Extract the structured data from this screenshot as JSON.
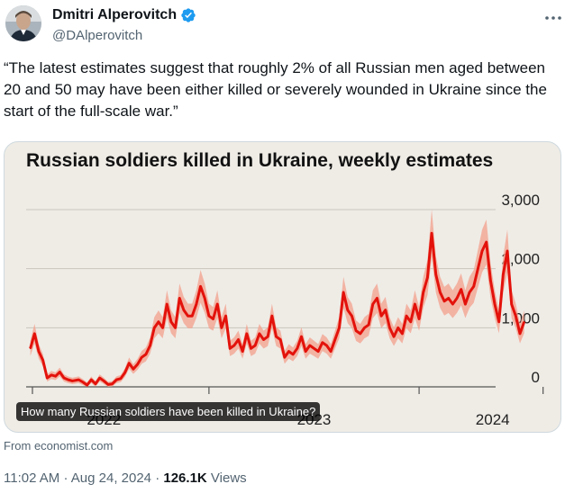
{
  "author": {
    "name": "Dmitri Alperovitch",
    "handle": "@DAlperovitch"
  },
  "tweet": {
    "text": "“The latest estimates suggest that roughly 2% of all Russian men aged between 20 and 50 may have been either killed or severely wounded in Ukraine since the start of the full-scale war.”",
    "alt_text": "How many Russian soldiers have been killed in Ukraine?",
    "source": "From economist.com",
    "time": "11:02 AM",
    "date": "Aug 24, 2024",
    "views_count": "126.1K",
    "views_label": "Views"
  },
  "icons": {
    "verified": "verified-badge-icon",
    "more": "more-options-icon"
  },
  "colors": {
    "line": "#e3120b",
    "band": "#f3a08c",
    "card_bg": "#efece6",
    "verified": "#1d9bf0"
  },
  "chart_data": {
    "type": "line",
    "title": "Russian soldiers killed in Ukraine, weekly estimates",
    "y_ticks": [
      "3,000",
      "2,000",
      "1,000",
      "0"
    ],
    "y_tick_values": [
      3000,
      2000,
      1000,
      0
    ],
    "x_tick_labels": [
      "2022",
      "2023",
      "2024"
    ],
    "ylim": [
      0,
      3000
    ],
    "xlim": [
      2022.13,
      2024.6
    ],
    "series": [
      {
        "name": "Weekly estimate",
        "x": [
          2022.15,
          2022.17,
          2022.19,
          2022.21,
          2022.23,
          2022.25,
          2022.27,
          2022.29,
          2022.31,
          2022.33,
          2022.35,
          2022.38,
          2022.4,
          2022.42,
          2022.44,
          2022.46,
          2022.48,
          2022.5,
          2022.52,
          2022.54,
          2022.56,
          2022.58,
          2022.6,
          2022.62,
          2022.64,
          2022.66,
          2022.68,
          2022.7,
          2022.72,
          2022.74,
          2022.76,
          2022.78,
          2022.8,
          2022.82,
          2022.84,
          2022.86,
          2022.88,
          2022.9,
          2022.92,
          2022.94,
          2022.96,
          2022.98,
          2023.0,
          2023.02,
          2023.04,
          2023.06,
          2023.08,
          2023.1,
          2023.12,
          2023.14,
          2023.16,
          2023.18,
          2023.2,
          2023.22,
          2023.24,
          2023.26,
          2023.28,
          2023.3,
          2023.32,
          2023.34,
          2023.36,
          2023.38,
          2023.4,
          2023.42,
          2023.44,
          2023.46,
          2023.48,
          2023.5,
          2023.52,
          2023.54,
          2023.56,
          2023.58,
          2023.6,
          2023.62,
          2023.64,
          2023.66,
          2023.68,
          2023.7,
          2023.72,
          2023.74,
          2023.76,
          2023.78,
          2023.8,
          2023.82,
          2023.84,
          2023.86,
          2023.88,
          2023.9,
          2023.92,
          2023.94,
          2023.96,
          2023.98,
          2024.0,
          2024.02,
          2024.04,
          2024.06,
          2024.08,
          2024.1,
          2024.12,
          2024.14,
          2024.16,
          2024.18,
          2024.2,
          2024.22,
          2024.24,
          2024.26,
          2024.28,
          2024.3,
          2024.32,
          2024.34,
          2024.36,
          2024.38,
          2024.4,
          2024.42,
          2024.44,
          2024.46,
          2024.48,
          2024.5
        ],
        "values": [
          650,
          900,
          600,
          450,
          150,
          200,
          180,
          250,
          150,
          120,
          100,
          120,
          80,
          30,
          120,
          50,
          150,
          100,
          40,
          50,
          120,
          140,
          240,
          400,
          300,
          380,
          500,
          550,
          700,
          1000,
          1100,
          1000,
          1400,
          1100,
          1000,
          1500,
          1300,
          1200,
          1200,
          1400,
          1700,
          1500,
          1200,
          1150,
          1400,
          1000,
          1200,
          650,
          700,
          800,
          600,
          900,
          650,
          700,
          900,
          800,
          850,
          1200,
          850,
          800,
          500,
          600,
          550,
          650,
          850,
          600,
          700,
          650,
          600,
          750,
          700,
          600,
          800,
          1000,
          1600,
          1300,
          1200,
          950,
          900,
          1000,
          1050,
          1400,
          1500,
          1200,
          1300,
          1000,
          850,
          1000,
          900,
          1200,
          1100,
          1400,
          1150,
          1600,
          1850,
          2600,
          1900,
          1600,
          1450,
          1500,
          1400,
          1500,
          1650,
          1400,
          1600,
          1700,
          2000,
          2300,
          2450,
          1800,
          1400,
          1100,
          1900,
          2300,
          1400,
          1200,
          900,
          1100
        ]
      }
    ]
  }
}
